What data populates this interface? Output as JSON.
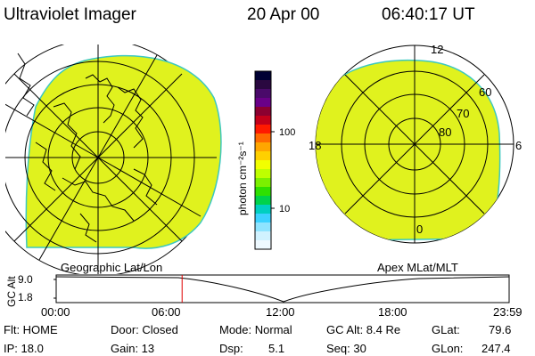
{
  "header": {
    "title": "Ultraviolet Imager",
    "date": "20 Apr 00",
    "time": "06:40:17 UT"
  },
  "colorbar": {
    "unit_label": "photon cm⁻²s⁻¹",
    "tick_labels": [
      "100",
      "10"
    ],
    "colors": [
      "#000033",
      "#2a0840",
      "#4a0a6a",
      "#6a0088",
      "#8c0030",
      "#c4001a",
      "#ff1a00",
      "#ff6a00",
      "#ffa600",
      "#ffd000",
      "#f2ff00",
      "#bfff00",
      "#7cf000",
      "#2fe000",
      "#00d24a",
      "#00cfc0",
      "#3cd2ff",
      "#8fe4ff",
      "#d0f2ff",
      "#eef9ff"
    ]
  },
  "left_map": {
    "label": "Geographic Lat/Lon",
    "fill_color": "#e0f21e"
  },
  "right_map": {
    "label": "Apex MLat/MLT",
    "mlt_labels": {
      "top": "12",
      "left": "18",
      "right": "6",
      "bottom": "0"
    },
    "lat_labels": [
      "60",
      "70",
      "80"
    ],
    "fill_color": "#e0f21e"
  },
  "timeline": {
    "ylabel": "GC Alt",
    "y_ticks": [
      "9.0",
      "1.8"
    ],
    "x_ticks": [
      "00:00",
      "06:00",
      "12:00",
      "18:00",
      "23:59"
    ],
    "current_time_fraction": 0.278
  },
  "info": {
    "flt": "Flt: HOME",
    "ip": "IP: 18.0",
    "door": "Door: Closed",
    "gain": "Gain: 13",
    "mode": "Mode: Normal",
    "dsp_label": "Dsp:",
    "dsp_value": "5.1",
    "gc_alt": "GC Alt: 8.4 Re",
    "seq": "Seq: 30",
    "glat_label": "GLat:",
    "glat_value": "79.6",
    "glon_label": "GLon:",
    "glon_value": "247.4"
  }
}
